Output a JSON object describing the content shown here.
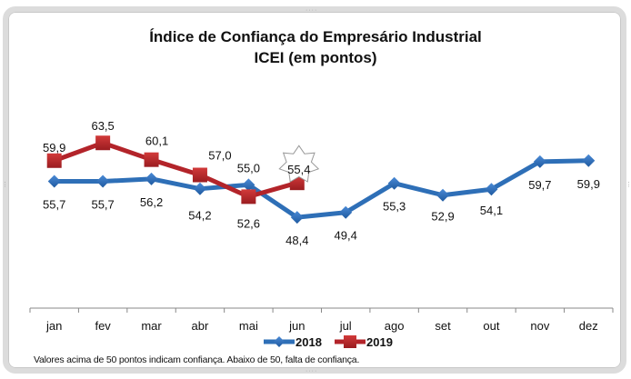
{
  "chart_data": {
    "type": "line",
    "title": "Índice de Confiança do Empresário Industrial",
    "subtitle": "ICEI (em pontos)",
    "categories": [
      "jan",
      "fev",
      "mar",
      "abr",
      "mai",
      "jun",
      "jul",
      "ago",
      "set",
      "out",
      "nov",
      "dez"
    ],
    "series": [
      {
        "name": "2018",
        "color": "#2e6fb7",
        "marker": "diamond",
        "values": [
          55.7,
          55.7,
          56.2,
          54.2,
          55.0,
          48.4,
          49.4,
          55.3,
          52.9,
          54.1,
          59.7,
          59.9
        ],
        "labels": [
          "55,7",
          "55,7",
          "56,2",
          "54,2",
          "55,0",
          "48,4",
          "49,4",
          "55,3",
          "52,9",
          "54,1",
          "59,7",
          "59,9"
        ]
      },
      {
        "name": "2019",
        "color": "#b3242a",
        "marker": "square",
        "values": [
          59.9,
          63.5,
          60.1,
          57.0,
          52.6,
          55.4
        ],
        "labels": [
          "59,9",
          "63,5",
          "60,1",
          "57,0",
          "52,6",
          "55,4"
        ]
      }
    ],
    "highlight": {
      "series": "2019",
      "index": 5,
      "shape": "star"
    },
    "xlabel": "",
    "ylabel": "",
    "ylim": [
      30,
      67
    ],
    "grid": false,
    "legend": "bottom"
  },
  "footnote": "Valores acima de 50 pontos indicam confiança. Abaixo de 50, falta de confiança."
}
